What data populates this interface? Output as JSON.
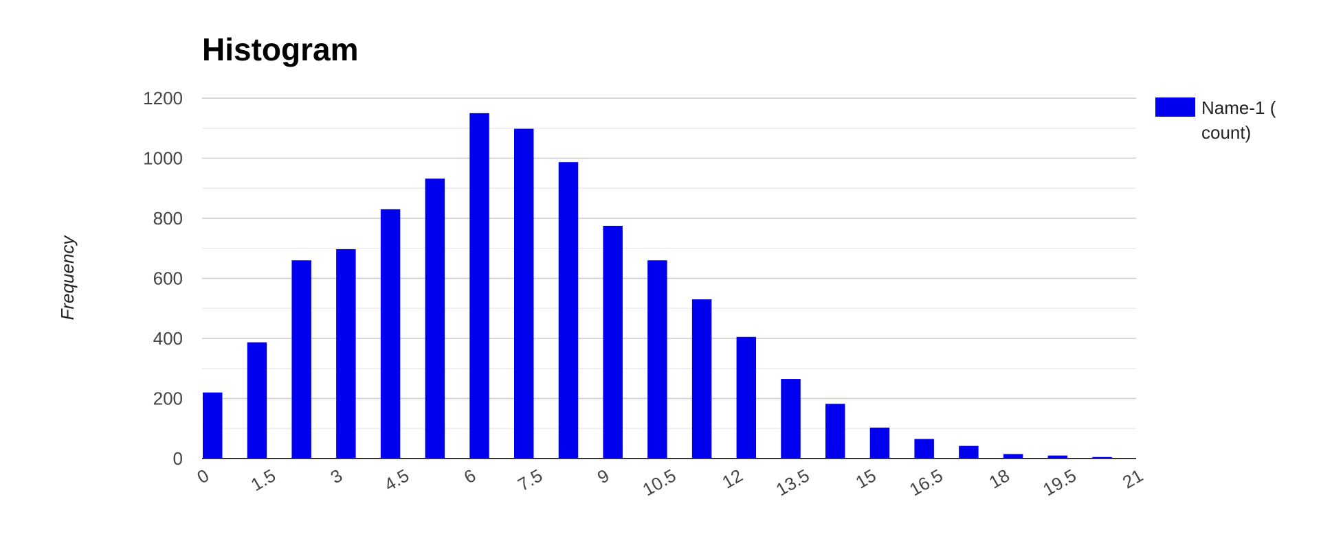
{
  "chart_data": {
    "type": "bar",
    "title": "Histogram",
    "xlabel": "",
    "ylabel": "Frequency",
    "ylim": [
      0,
      1200
    ],
    "yticks": [
      "0",
      "200",
      "400",
      "600",
      "800",
      "1000",
      "1200"
    ],
    "xlim": [
      0,
      21
    ],
    "xticks": [
      "0",
      "1.5",
      "3",
      "4.5",
      "6",
      "7.5",
      "9",
      "10.5",
      "12",
      "13.5",
      "15",
      "16.5",
      "18",
      "19.5",
      "21"
    ],
    "bin_width": 1,
    "bin_starts": [
      0,
      1,
      2,
      3,
      4,
      5,
      6,
      7,
      8,
      9,
      10,
      11,
      12,
      13,
      14,
      15,
      16,
      17,
      18,
      19,
      20
    ],
    "series": [
      {
        "name": "Name-1 ( count)",
        "color": "#0000ee",
        "values": [
          220,
          387,
          660,
          697,
          830,
          932,
          1150,
          1098,
          987,
          775,
          660,
          530,
          405,
          265,
          182,
          103,
          65,
          42,
          15,
          10,
          5
        ]
      }
    ],
    "legend": {
      "position": "right",
      "line1": "Name-1 (",
      "line2": "count)"
    },
    "grid": true
  }
}
